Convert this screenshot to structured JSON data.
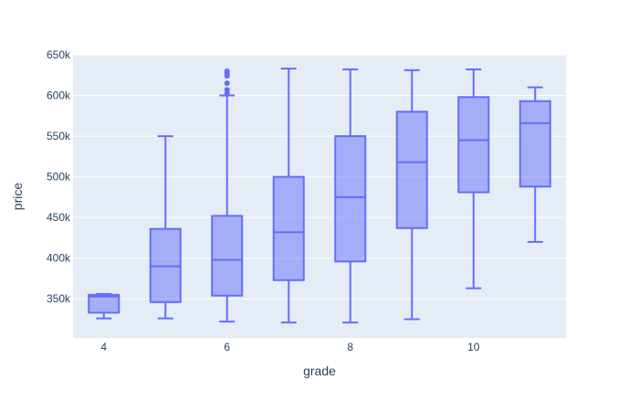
{
  "chart_data": {
    "type": "box",
    "xlabel": "grade",
    "ylabel": "price",
    "x_ticks": [
      4,
      6,
      8,
      10
    ],
    "x_tick_labels": [
      "4",
      "6",
      "8",
      "10"
    ],
    "y_ticks": [
      350000,
      400000,
      450000,
      500000,
      550000,
      600000,
      650000
    ],
    "y_tick_labels": [
      "350k",
      "400k",
      "450k",
      "500k",
      "550k",
      "600k",
      "650k"
    ],
    "xlim": [
      3.5,
      11.5
    ],
    "ylim": [
      302000,
      650000
    ],
    "grid": true,
    "colors": {
      "plot_bg": "#E5ECF6",
      "grid": "#FFFFFF",
      "box_fill": "#636EFA",
      "box_line": "#636EFA",
      "text": "#2a3f5f"
    },
    "boxes": [
      {
        "grade": 4,
        "min": 326000,
        "q1": 333000,
        "median": 353000,
        "q3": 355000,
        "max": 356000,
        "outliers": []
      },
      {
        "grade": 5,
        "min": 326000,
        "q1": 346000,
        "median": 390000,
        "q3": 436000,
        "max": 550000,
        "outliers": []
      },
      {
        "grade": 6,
        "min": 322000,
        "q1": 354000,
        "median": 398000,
        "q3": 452000,
        "max": 600000,
        "outliers": [
          603000,
          607000,
          615000,
          624000,
          627000,
          630000
        ]
      },
      {
        "grade": 7,
        "min": 321000,
        "q1": 373000,
        "median": 432000,
        "q3": 500000,
        "max": 633000,
        "outliers": []
      },
      {
        "grade": 8,
        "min": 321000,
        "q1": 396000,
        "median": 475000,
        "q3": 550000,
        "max": 632000,
        "outliers": []
      },
      {
        "grade": 9,
        "min": 325000,
        "q1": 437000,
        "median": 518000,
        "q3": 580000,
        "max": 631000,
        "outliers": []
      },
      {
        "grade": 10,
        "min": 363000,
        "q1": 481000,
        "median": 545000,
        "q3": 598000,
        "max": 632000,
        "outliers": []
      },
      {
        "grade": 11,
        "min": 420000,
        "q1": 488000,
        "median": 566000,
        "q3": 593000,
        "max": 610000,
        "outliers": []
      }
    ]
  }
}
